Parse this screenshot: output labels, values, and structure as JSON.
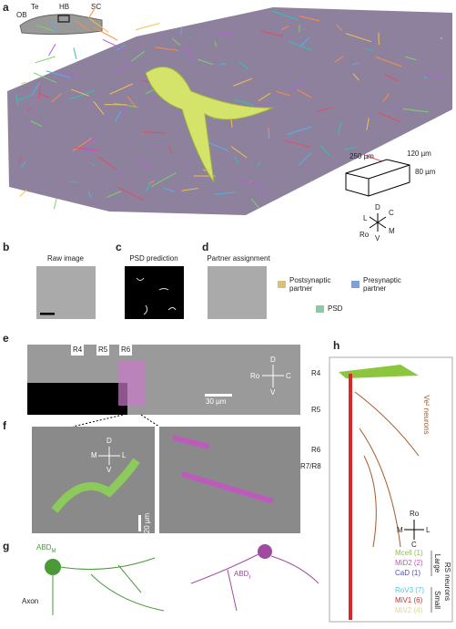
{
  "panels": [
    "a",
    "b",
    "c",
    "d",
    "e",
    "f",
    "g",
    "h"
  ],
  "a": {
    "regions": [
      "OB",
      "Te",
      "HB",
      "SC"
    ],
    "box_dims": [
      "250 µm",
      "120 µm",
      "80 µm"
    ],
    "compass": {
      "D": "D",
      "C": "C",
      "L": "L",
      "M": "M",
      "Ro": "Ro",
      "V": "V"
    }
  },
  "b": {
    "title": "Raw image"
  },
  "c": {
    "title": "PSD prediction"
  },
  "d": {
    "title": "Partner assignment",
    "legend": [
      {
        "lines": [
          "Postsynaptic",
          "partner"
        ],
        "color": "#d8c27a"
      },
      {
        "lines": [
          "Presynaptic",
          "partner"
        ],
        "color": "#7f9fd6"
      },
      {
        "lines": [
          "PSD"
        ],
        "color": "#8cc9a8"
      }
    ]
  },
  "e": {
    "rhombomeres": [
      "R4",
      "R5",
      "R6"
    ],
    "scale": "30 µm",
    "compass": {
      "D": "D",
      "Ro": "Ro",
      "C": "C",
      "V": "V"
    }
  },
  "f": {
    "compass": {
      "D": "D",
      "M": "M",
      "L": "L",
      "V": "V"
    },
    "scale": "20 µm",
    "rhombomere": "R7/R8"
  },
  "g": {
    "left": {
      "name": "ABD",
      "subscript": "M"
    },
    "axon": "Axon",
    "right": {
      "name": "ABD",
      "subscript": "I"
    }
  },
  "h": {
    "rhombomeres": [
      "R4",
      "R5",
      "R6"
    ],
    "group": "Ve² neurons",
    "compass": {
      "Ro": "Ro",
      "M": "M",
      "L": "L",
      "C": "C"
    },
    "legend": [
      {
        "label": "Mcell (1)",
        "color": "#8cc63f"
      },
      {
        "label": "MiD2 (2)",
        "color": "#c94fc9"
      },
      {
        "label": "CaD (1)",
        "color": "#4a4ac9"
      },
      {
        "label": "RoV3 (7)",
        "color": "#4fc9d6"
      },
      {
        "label": "MiV1 (6)",
        "color": "#d62a2a"
      },
      {
        "label": "MiV2 (4)",
        "color": "#e0d890"
      }
    ],
    "sizes": [
      "Large",
      "Small"
    ],
    "class": "RS neurons"
  }
}
